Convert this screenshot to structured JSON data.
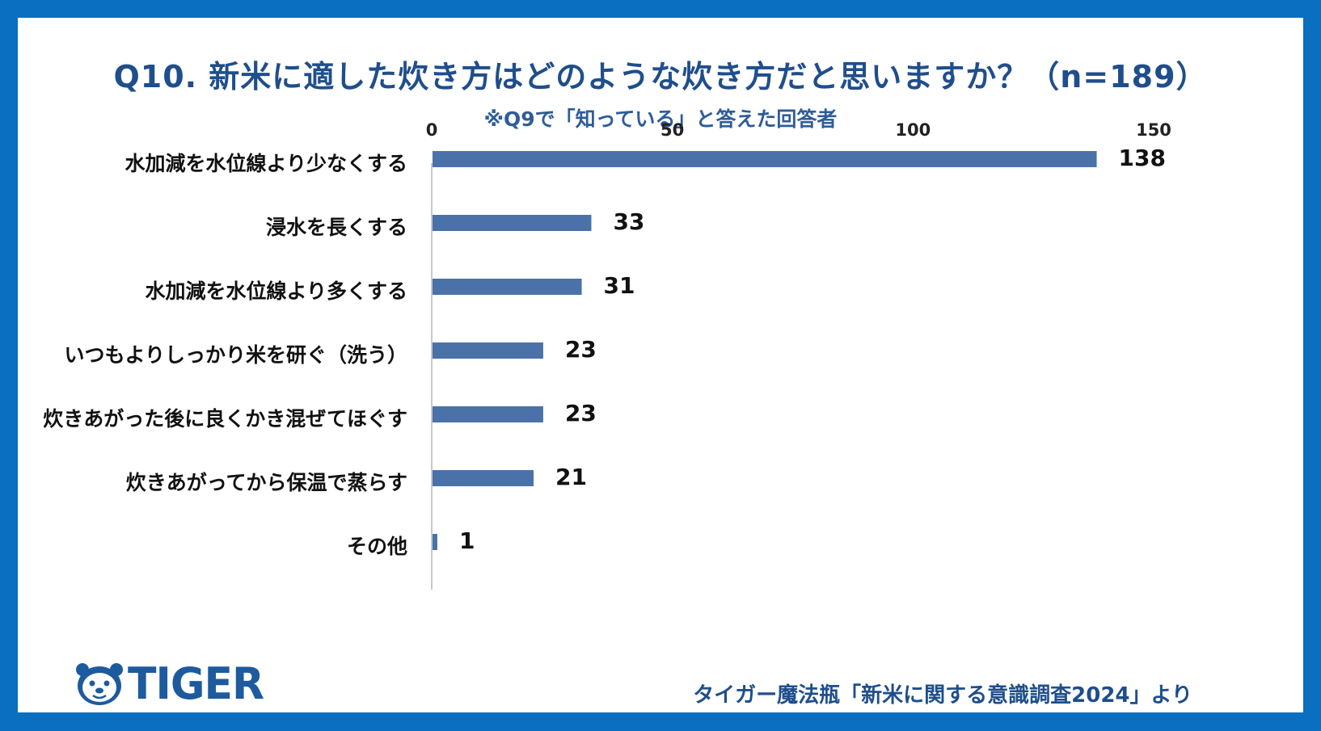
{
  "header": {
    "title": "Q10. 新米に適した炊き方はどのような炊き方だと思いますか？（n=189）",
    "subtitle": "※Q9で「知っている」と答えた回答者"
  },
  "footer": {
    "logo_text": "TIGER",
    "source": "タイガー魔法瓶「新米に関する意識調査2024」より"
  },
  "colors": {
    "frame": "#0a6fc0",
    "bar": "#4a72a8",
    "title": "#1f4e8c"
  },
  "chart_data": {
    "type": "bar",
    "orientation": "horizontal",
    "categories": [
      "水加減を水位線より少なくする",
      "浸水を長くする",
      "水加減を水位線より多くする",
      "いつもよりしっかり米を研ぐ（洗う）",
      "炊きあがった後に良くかき混ぜてほぐす",
      "炊きあがってから保温で蒸らす",
      "その他"
    ],
    "values": [
      138,
      33,
      31,
      23,
      23,
      21,
      1
    ],
    "xlim": [
      0,
      150
    ],
    "ticks": [
      "0",
      "50",
      "100",
      "150"
    ],
    "tick_values": [
      0,
      50,
      100,
      150
    ],
    "axis_position": "top",
    "grid": false
  }
}
